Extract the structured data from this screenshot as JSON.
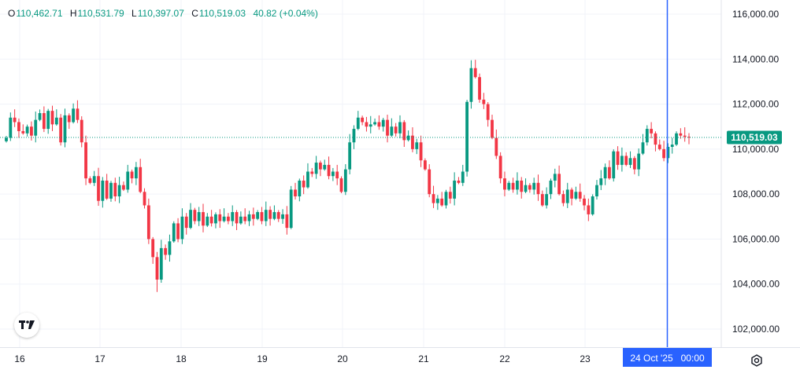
{
  "header": {
    "open_key": "O",
    "open": "110,462.71",
    "high_key": "H",
    "high": "110,531.79",
    "low_key": "L",
    "low": "110,397.07",
    "close_key": "C",
    "close": "110,519.03",
    "change": "40.82 (+0.04%)"
  },
  "price_axis": {
    "labels": [
      "116,000.00",
      "114,000.00",
      "112,000.00",
      "110,000.00",
      "108,000.00",
      "106,000.00",
      "104,000.00",
      "102,000.00"
    ],
    "last_price_label": "110,519.03"
  },
  "time_axis": {
    "labels": [
      "16",
      "17",
      "18",
      "19",
      "20",
      "21",
      "22",
      "23"
    ],
    "crosshair_label": "24 Oct '25   00:00"
  },
  "icons": {
    "logo": "tradingview-logo-icon",
    "settings": "settings-gear-icon"
  },
  "colors": {
    "up": "#089981",
    "down": "#f23645",
    "crosshair": "#2962ff",
    "grid": "#f0f3fa"
  },
  "chart_data": {
    "type": "candlestick",
    "title": "",
    "xlabel": "",
    "ylabel": "",
    "ylim": [
      101000,
      116600
    ],
    "x_ticks": [
      "16",
      "17",
      "18",
      "19",
      "20",
      "21",
      "22",
      "23"
    ],
    "crosshair_x": "24 Oct '25 00:00",
    "last_price": 110519.03,
    "grid": true,
    "closes": [
      110500,
      111400,
      111200,
      110800,
      110700,
      111000,
      110600,
      111300,
      111600,
      110900,
      111700,
      111100,
      111400,
      110300,
      111500,
      111200,
      111800,
      111300,
      110300,
      108700,
      108500,
      108800,
      107700,
      108600,
      107800,
      108500,
      107900,
      108400,
      108200,
      109000,
      108700,
      109200,
      108100,
      107500,
      106000,
      105200,
      104200,
      105600,
      105300,
      105900,
      106700,
      106000,
      107000,
      106500,
      107300,
      106800,
      107200,
      106600,
      107000,
      106700,
      107100,
      106800,
      107000,
      106800,
      107200,
      106700,
      107000,
      106800,
      107100,
      106900,
      107200,
      106800,
      107300,
      106900,
      107200,
      106900,
      107100,
      106500,
      108200,
      107900,
      108600,
      108300,
      109000,
      108900,
      109400,
      109100,
      109300,
      108800,
      109000,
      108700,
      108100,
      109100,
      110300,
      110900,
      111400,
      111200,
      111000,
      111100,
      111200,
      111000,
      111300,
      110600,
      111000,
      110700,
      111200,
      110400,
      110600,
      110000,
      110300,
      109500,
      109100,
      108000,
      107600,
      107800,
      107500,
      108100,
      107800,
      108600,
      108500,
      109000,
      112100,
      113600,
      113200,
      112200,
      112000,
      111300,
      110500,
      109700,
      108700,
      108200,
      108500,
      108200,
      108600,
      108100,
      108400,
      108200,
      108500,
      108000,
      107500,
      108000,
      108600,
      108900,
      108000,
      107600,
      108200,
      107800,
      108100,
      107800,
      107500,
      107100,
      107900,
      108400,
      108700,
      109200,
      108700,
      109900,
      109300,
      109700,
      109300,
      109600,
      109100,
      109800,
      110300,
      110900,
      110700,
      110200,
      110000,
      109600,
      110100,
      110200,
      110700,
      110600,
      110550,
      110519
    ]
  }
}
